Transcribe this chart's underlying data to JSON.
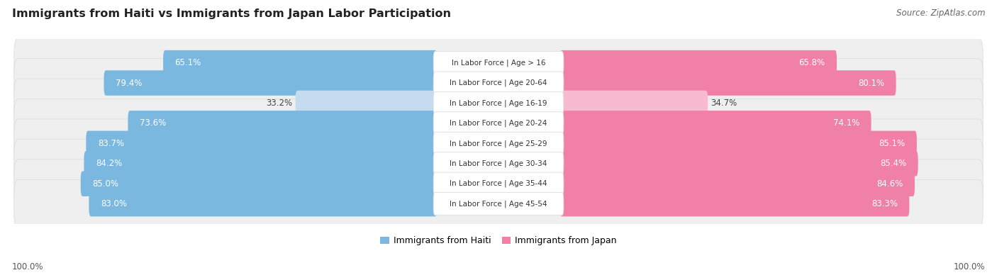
{
  "title": "Immigrants from Haiti vs Immigrants from Japan Labor Participation",
  "source": "Source: ZipAtlas.com",
  "categories": [
    "In Labor Force | Age > 16",
    "In Labor Force | Age 20-64",
    "In Labor Force | Age 16-19",
    "In Labor Force | Age 20-24",
    "In Labor Force | Age 25-29",
    "In Labor Force | Age 30-34",
    "In Labor Force | Age 35-44",
    "In Labor Force | Age 45-54"
  ],
  "haiti_values": [
    65.1,
    79.4,
    33.2,
    73.6,
    83.7,
    84.2,
    85.0,
    83.0
  ],
  "japan_values": [
    65.8,
    80.1,
    34.7,
    74.1,
    85.1,
    85.4,
    84.6,
    83.3
  ],
  "haiti_color": "#7BB8E0",
  "haiti_color_light": "#C5DCF0",
  "japan_color": "#F080A8",
  "japan_color_light": "#F8BAD0",
  "row_bg_color": "#EFEFEF",
  "row_border_color": "#DDDDDD",
  "center_label_bg": "#FFFFFF",
  "center_label_border": "#DDDDDD",
  "title_fontsize": 11.5,
  "source_fontsize": 8.5,
  "value_fontsize": 8.5,
  "cat_fontsize": 7.5,
  "legend_fontsize": 9,
  "footer_label": "100.0%",
  "max_value": 100.0,
  "threshold": 50.0
}
